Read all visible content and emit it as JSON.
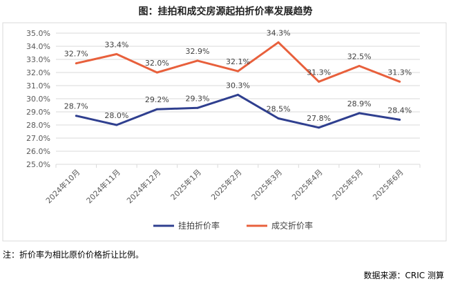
{
  "title": "图：挂拍和成交房源起拍折价率发展趋势",
  "note": "注：折价率为相比原价价格折让比例。",
  "source": "数据来源：CRIC 测算",
  "chart_data": {
    "type": "line",
    "title": "图：挂拍和成交房源起拍折价率发展趋势",
    "categories": [
      "2024年10月",
      "2024年11月",
      "2024年12月",
      "2025年1月",
      "2025年2月",
      "2025年3月",
      "2025年4月",
      "2025年5月",
      "2025年6月"
    ],
    "ylim": [
      25,
      35
    ],
    "yticks": [
      "25.0%",
      "26.0%",
      "27.0%",
      "28.0%",
      "29.0%",
      "30.0%",
      "31.0%",
      "32.0%",
      "33.0%",
      "34.0%",
      "35.0%"
    ],
    "grid": true,
    "legend": "bottom",
    "series": [
      {
        "name": "挂拍折价率",
        "color": "#2F3F8F",
        "values": [
          28.7,
          28.0,
          29.2,
          29.3,
          30.3,
          28.5,
          27.8,
          28.9,
          28.4
        ],
        "labels": [
          "28.7%",
          "28.0%",
          "29.2%",
          "29.3%",
          "30.3%",
          "28.5%",
          "27.8%",
          "28.9%",
          "28.4%"
        ]
      },
      {
        "name": "成交折价率",
        "color": "#E8603C",
        "values": [
          32.7,
          33.4,
          32.0,
          32.9,
          32.1,
          34.3,
          31.3,
          32.5,
          31.3
        ],
        "labels": [
          "32.7%",
          "33.4%",
          "32.0%",
          "32.9%",
          "32.1%",
          "34.3%",
          "31.3%",
          "32.5%",
          "31.3%"
        ]
      }
    ]
  }
}
